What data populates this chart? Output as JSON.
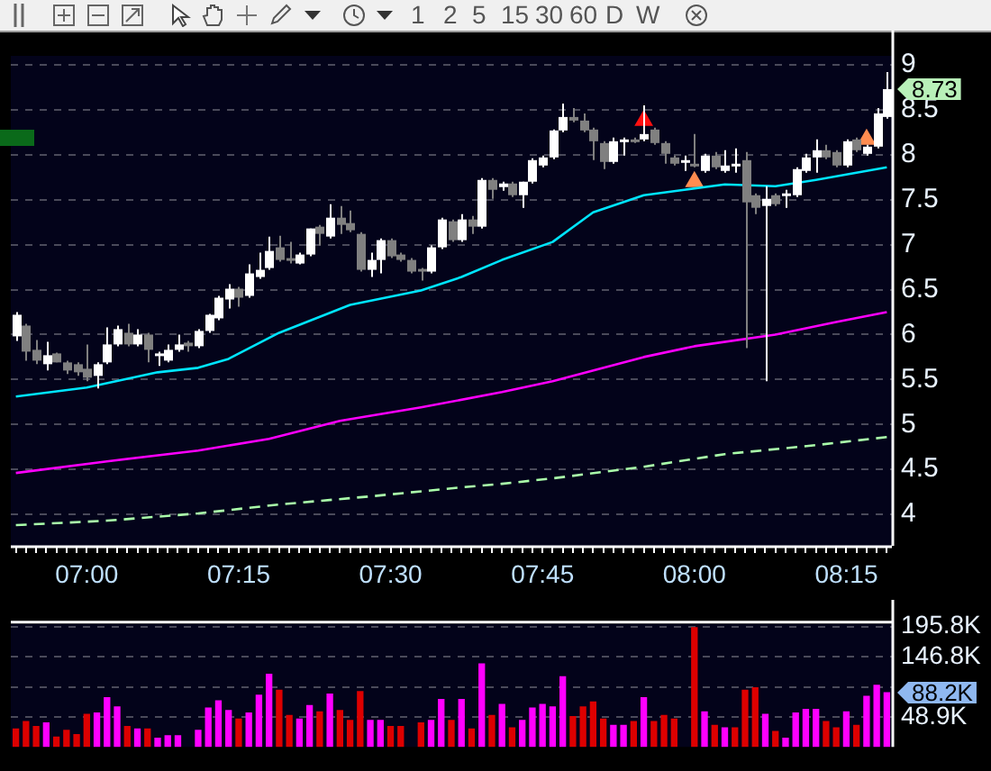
{
  "chart_data": [
    {
      "type": "candlestick",
      "categories": [
        null,
        null,
        null,
        null,
        null,
        null,
        null,
        "07:00",
        null,
        null,
        null,
        null,
        null,
        null,
        null,
        null,
        null,
        null,
        null,
        null,
        null,
        null,
        "07:15",
        null,
        null,
        null,
        null,
        null,
        null,
        null,
        null,
        null,
        null,
        null,
        null,
        null,
        null,
        "07:30",
        null,
        null,
        null,
        null,
        null,
        null,
        null,
        null,
        null,
        null,
        null,
        null,
        null,
        null,
        "07:45",
        null,
        null,
        null,
        null,
        null,
        null,
        null,
        null,
        null,
        null,
        null,
        null,
        null,
        null,
        "08:00",
        null,
        null,
        null,
        null,
        null,
        null,
        null,
        null,
        null,
        null,
        null,
        null,
        null,
        null,
        "08:15",
        null,
        null,
        null,
        null
      ],
      "ohlc": [
        [
          5.98,
          6.25,
          5.93,
          6.22
        ],
        [
          6.1,
          6.12,
          5.71,
          5.81
        ],
        [
          5.83,
          5.94,
          5.67,
          5.71
        ],
        [
          5.67,
          5.92,
          5.6,
          5.77
        ],
        [
          5.79,
          5.8,
          5.69,
          5.69
        ],
        [
          5.69,
          5.71,
          5.56,
          5.6
        ],
        [
          5.67,
          5.69,
          5.54,
          5.58
        ],
        [
          5.62,
          5.89,
          5.48,
          5.52
        ],
        [
          5.54,
          5.69,
          5.4,
          5.67
        ],
        [
          5.69,
          6.08,
          5.67,
          5.89
        ],
        [
          5.89,
          6.1,
          5.87,
          6.06
        ],
        [
          6.02,
          6.12,
          5.87,
          5.89
        ],
        [
          5.89,
          6.06,
          5.87,
          6.0
        ],
        [
          6.0,
          6.02,
          5.69,
          5.83
        ],
        [
          5.77,
          5.81,
          5.65,
          5.79
        ],
        [
          5.71,
          5.89,
          5.69,
          5.83
        ],
        [
          5.83,
          6.0,
          5.81,
          5.89
        ],
        [
          5.91,
          5.93,
          5.81,
          5.87
        ],
        [
          5.87,
          6.06,
          5.85,
          6.04
        ],
        [
          6.04,
          6.23,
          6.02,
          6.22
        ],
        [
          6.18,
          6.43,
          6.16,
          6.41
        ],
        [
          6.39,
          6.56,
          6.29,
          6.51
        ],
        [
          6.51,
          6.53,
          6.31,
          6.41
        ],
        [
          6.43,
          6.78,
          6.41,
          6.68
        ],
        [
          6.64,
          6.91,
          6.62,
          6.72
        ],
        [
          6.74,
          7.09,
          6.72,
          6.93
        ],
        [
          6.97,
          7.1,
          6.81,
          6.83
        ],
        [
          6.85,
          7.03,
          6.79,
          6.83
        ],
        [
          6.79,
          6.91,
          6.78,
          6.89
        ],
        [
          6.89,
          7.18,
          6.87,
          7.18
        ],
        [
          7.2,
          7.22,
          6.99,
          7.12
        ],
        [
          7.09,
          7.45,
          7.07,
          7.3
        ],
        [
          7.3,
          7.43,
          7.12,
          7.22
        ],
        [
          7.24,
          7.38,
          7.14,
          7.16
        ],
        [
          7.12,
          7.14,
          6.7,
          6.72
        ],
        [
          6.72,
          6.91,
          6.64,
          6.83
        ],
        [
          6.83,
          7.07,
          6.68,
          7.05
        ],
        [
          7.05,
          7.07,
          6.85,
          6.87
        ],
        [
          6.89,
          6.91,
          6.81,
          6.83
        ],
        [
          6.83,
          6.85,
          6.68,
          6.7
        ],
        [
          6.73,
          6.74,
          6.6,
          6.7
        ],
        [
          6.7,
          6.99,
          6.68,
          6.97
        ],
        [
          6.97,
          7.3,
          6.95,
          7.28
        ],
        [
          7.26,
          7.28,
          7.03,
          7.05
        ],
        [
          7.05,
          7.34,
          7.03,
          7.28
        ],
        [
          7.28,
          7.32,
          7.12,
          7.2
        ],
        [
          7.2,
          7.74,
          7.18,
          7.72
        ],
        [
          7.72,
          7.74,
          7.51,
          7.61
        ],
        [
          7.64,
          7.7,
          7.6,
          7.68
        ],
        [
          7.68,
          7.7,
          7.53,
          7.55
        ],
        [
          7.55,
          7.7,
          7.41,
          7.7
        ],
        [
          7.7,
          7.96,
          7.68,
          7.94
        ],
        [
          7.88,
          7.99,
          7.86,
          7.97
        ],
        [
          7.97,
          8.28,
          7.95,
          8.27
        ],
        [
          8.27,
          8.57,
          8.25,
          8.42
        ],
        [
          8.42,
          8.52,
          8.36,
          8.38
        ],
        [
          8.38,
          8.46,
          8.25,
          8.27
        ],
        [
          8.28,
          8.3,
          7.94,
          8.15
        ],
        [
          8.13,
          8.15,
          7.84,
          7.92
        ],
        [
          7.92,
          8.19,
          7.9,
          8.15
        ],
        [
          8.15,
          8.19,
          7.99,
          8.17
        ],
        [
          8.17,
          8.19,
          8.13,
          8.15
        ],
        [
          8.17,
          8.55,
          8.15,
          8.23
        ],
        [
          8.28,
          8.3,
          8.11,
          8.13
        ],
        [
          8.13,
          8.15,
          7.9,
          8.01
        ],
        [
          7.97,
          7.99,
          7.88,
          7.9
        ],
        [
          7.92,
          7.99,
          7.82,
          7.94
        ],
        [
          7.9,
          8.23,
          7.86,
          7.88
        ],
        [
          7.82,
          8.01,
          7.8,
          7.99
        ],
        [
          7.99,
          8.03,
          7.84,
          7.86
        ],
        [
          7.82,
          8.05,
          7.8,
          7.88
        ],
        [
          7.88,
          8.07,
          7.8,
          7.9
        ],
        [
          7.94,
          8.03,
          5.85,
          7.47
        ],
        [
          7.55,
          7.57,
          7.34,
          7.41
        ],
        [
          7.43,
          7.65,
          5.48,
          7.51
        ],
        [
          7.55,
          7.57,
          7.43,
          7.45
        ],
        [
          7.55,
          7.61,
          7.41,
          7.57
        ],
        [
          7.55,
          7.86,
          7.53,
          7.84
        ],
        [
          7.82,
          8.01,
          7.8,
          7.97
        ],
        [
          7.97,
          8.17,
          7.8,
          8.05
        ],
        [
          8.05,
          8.11,
          7.95,
          7.97
        ],
        [
          8.03,
          8.05,
          7.86,
          7.88
        ],
        [
          7.88,
          8.17,
          7.86,
          8.15
        ],
        [
          8.17,
          8.19,
          8.03,
          8.05
        ],
        [
          8.01,
          8.11,
          7.99,
          8.09
        ],
        [
          8.09,
          8.52,
          8.07,
          8.46
        ],
        [
          8.42,
          8.92,
          8.4,
          8.73
        ]
      ],
      "series": [
        {
          "type": "line",
          "color": "#00e5ff",
          "values": [
            5.31,
            null,
            null,
            null,
            null,
            null,
            null,
            5.41,
            null,
            null,
            null,
            null,
            null,
            null,
            5.58,
            null,
            null,
            null,
            5.63,
            null,
            null,
            5.73,
            null,
            null,
            null,
            null,
            6.02,
            null,
            null,
            null,
            null,
            null,
            null,
            6.33,
            null,
            null,
            null,
            null,
            null,
            null,
            6.49,
            null,
            null,
            null,
            6.64,
            null,
            null,
            null,
            6.83,
            null,
            null,
            null,
            null,
            7.03,
            null,
            null,
            null,
            7.36,
            null,
            null,
            null,
            null,
            7.55,
            null,
            null,
            null,
            7.61,
            null,
            null,
            null,
            7.67,
            null,
            null,
            null,
            null,
            7.65,
            null,
            null,
            null,
            7.72,
            null,
            null,
            null,
            7.8,
            null,
            null,
            7.86
          ]
        },
        {
          "type": "line",
          "color": "#ff00ff",
          "values": [
            4.46,
            null,
            null,
            null,
            null,
            null,
            null,
            null,
            null,
            4.59,
            null,
            null,
            null,
            null,
            null,
            null,
            null,
            null,
            4.71,
            null,
            null,
            null,
            null,
            null,
            null,
            4.84,
            null,
            null,
            null,
            null,
            null,
            null,
            5.04,
            null,
            null,
            null,
            null,
            null,
            null,
            null,
            5.19,
            null,
            null,
            null,
            null,
            null,
            null,
            null,
            5.36,
            null,
            null,
            null,
            null,
            5.48,
            null,
            null,
            null,
            null,
            null,
            null,
            null,
            null,
            5.75,
            null,
            null,
            null,
            null,
            5.87,
            null,
            null,
            null,
            null,
            null,
            null,
            null,
            6.0,
            null,
            null,
            null,
            null,
            null,
            6.14,
            null,
            null,
            null,
            null,
            6.25
          ]
        },
        {
          "type": "line",
          "color": "#aaffaa",
          "line_style": "dashed",
          "values": [
            3.88,
            null,
            null,
            null,
            null,
            null,
            null,
            null,
            null,
            3.93,
            null,
            null,
            null,
            null,
            null,
            null,
            null,
            null,
            4.01,
            null,
            null,
            null,
            null,
            null,
            null,
            null,
            4.11,
            null,
            null,
            null,
            null,
            null,
            null,
            null,
            null,
            4.2,
            null,
            null,
            null,
            null,
            null,
            null,
            null,
            null,
            4.3,
            null,
            null,
            null,
            4.34,
            null,
            null,
            null,
            null,
            4.4,
            null,
            null,
            null,
            null,
            null,
            null,
            null,
            null,
            4.53,
            null,
            null,
            null,
            null,
            null,
            null,
            null,
            4.67,
            null,
            null,
            null,
            null,
            null,
            null,
            null,
            null,
            4.77,
            null,
            null,
            null,
            null,
            null,
            null,
            4.86
          ]
        },
        {
          "type": "scatter",
          "color": "#ff1010",
          "marker": "triangle",
          "values": [
            null,
            null,
            null,
            null,
            null,
            null,
            null,
            null,
            null,
            null,
            null,
            null,
            null,
            null,
            null,
            null,
            null,
            null,
            null,
            null,
            null,
            null,
            null,
            null,
            null,
            null,
            null,
            null,
            null,
            null,
            null,
            null,
            null,
            null,
            null,
            null,
            null,
            null,
            null,
            null,
            null,
            null,
            null,
            null,
            null,
            null,
            null,
            null,
            null,
            null,
            null,
            null,
            null,
            null,
            null,
            null,
            null,
            null,
            null,
            null,
            null,
            null,
            8.38,
            null,
            null,
            null,
            null,
            null,
            null,
            null,
            null,
            null,
            null,
            null,
            null,
            null,
            null,
            null,
            null,
            null,
            null,
            null,
            null,
            null,
            null,
            null,
            null
          ]
        },
        {
          "type": "scatter",
          "color": "#ff8c50",
          "marker": "triangle",
          "values": [
            null,
            null,
            null,
            null,
            null,
            null,
            null,
            null,
            null,
            null,
            null,
            null,
            null,
            null,
            null,
            null,
            null,
            null,
            null,
            null,
            null,
            null,
            null,
            null,
            null,
            null,
            null,
            null,
            null,
            null,
            null,
            null,
            null,
            null,
            null,
            null,
            null,
            null,
            null,
            null,
            null,
            null,
            null,
            null,
            null,
            null,
            null,
            null,
            null,
            null,
            null,
            null,
            null,
            null,
            null,
            null,
            null,
            null,
            null,
            null,
            null,
            null,
            null,
            null,
            null,
            null,
            null,
            7.7,
            null,
            null,
            null,
            null,
            null,
            null,
            null,
            null,
            null,
            null,
            null,
            null,
            null,
            null,
            null,
            null,
            8.17,
            null,
            null
          ]
        }
      ],
      "ylim": [
        3.65,
        9.1
      ],
      "yticks": [
        4,
        4.5,
        5,
        5.5,
        6,
        6.5,
        7,
        7.5,
        8,
        8.5,
        9
      ],
      "grid": "y",
      "legend": false,
      "annotations": [
        "1",
        "2",
        "5",
        "15",
        "30",
        "60",
        "D",
        "W",
        "8.73"
      ]
    },
    {
      "type": "bar",
      "values": [
        29,
        41,
        33,
        39,
        16,
        27,
        20,
        53,
        55,
        80,
        65,
        33,
        29,
        29,
        14,
        18,
        18,
        null,
        27,
        63,
        75,
        59,
        45,
        55,
        84,
        118,
        92,
        51,
        45,
        67,
        57,
        86,
        59,
        43,
        90,
        43,
        43,
        33,
        33,
        null,
        39,
        43,
        77,
        43,
        77,
        29,
        135,
        51,
        69,
        31,
        43,
        63,
        69,
        65,
        114,
        49,
        65,
        73,
        45,
        35,
        35,
        41,
        80,
        41,
        51,
        45,
        null,
        194,
        57,
        35,
        31,
        31,
        92,
        96,
        53,
        25,
        14,
        55,
        61,
        61,
        41,
        31,
        57,
        35,
        82,
        100,
        88.2
      ],
      "colors": [
        "#dd0000",
        "#dd0000",
        "#dd0000",
        "#ff00ff",
        "#dd0000",
        "#dd0000",
        "#dd0000",
        "#dd0000",
        "#ff00ff",
        "#ff00ff",
        "#ff00ff",
        "#dd0000",
        "#ff00ff",
        "#dd0000",
        "#ff00ff",
        "#ff00ff",
        "#ff00ff",
        "#dd0000",
        "#ff00ff",
        "#ff00ff",
        "#ff00ff",
        "#ff00ff",
        "#dd0000",
        "#ff00ff",
        "#ff00ff",
        "#ff00ff",
        "#dd0000",
        "#dd0000",
        "#ff00ff",
        "#ff00ff",
        "#dd0000",
        "#ff00ff",
        "#dd0000",
        "#dd0000",
        "#dd0000",
        "#ff00ff",
        "#ff00ff",
        "#dd0000",
        "#dd0000",
        "#dd0000",
        "#dd0000",
        "#ff00ff",
        "#ff00ff",
        "#dd0000",
        "#ff00ff",
        "#dd0000",
        "#ff00ff",
        "#dd0000",
        "#ff00ff",
        "#dd0000",
        "#ff00ff",
        "#ff00ff",
        "#ff00ff",
        "#ff00ff",
        "#ff00ff",
        "#dd0000",
        "#dd0000",
        "#dd0000",
        "#dd0000",
        "#ff00ff",
        "#ff00ff",
        "#dd0000",
        "#ff00ff",
        "#dd0000",
        "#dd0000",
        "#dd0000",
        "#ff00ff",
        "#dd0000",
        "#ff00ff",
        "#dd0000",
        "#ff00ff",
        "#dd0000",
        "#dd0000",
        "#dd0000",
        "#ff00ff",
        "#dd0000",
        "#ff00ff",
        "#ff00ff",
        "#ff00ff",
        "#ff00ff",
        "#dd0000",
        "#dd0000",
        "#ff00ff",
        "#dd0000",
        "#ff00ff",
        "#ff00ff",
        "#ff00ff"
      ],
      "ylim": [
        0,
        200
      ],
      "yticks": [
        {
          "value": 48.9,
          "label": "48.9K"
        },
        {
          "value": 97.8,
          "label": null
        },
        {
          "value": 146.8,
          "label": "146.8K"
        },
        {
          "value": 195.8,
          "label": "195.8K"
        }
      ],
      "grid": "y",
      "legend": false,
      "tick_labels": "y",
      "annotations": [
        "88.2K"
      ]
    }
  ]
}
